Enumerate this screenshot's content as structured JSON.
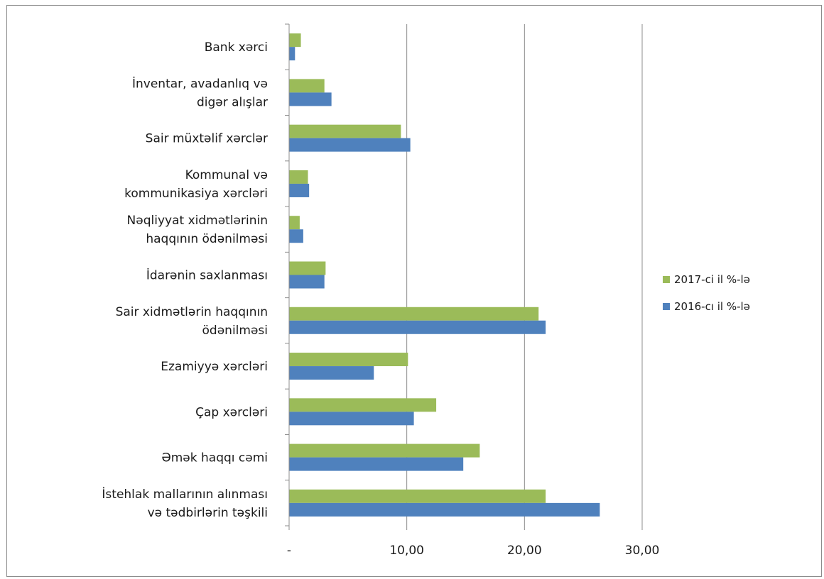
{
  "chart_data": {
    "type": "bar",
    "orientation": "horizontal",
    "categories": [
      [
        "Bank xərci"
      ],
      [
        "İnventar, avadanlıq və",
        "digər alışlar"
      ],
      [
        "Sair müxtəlif xərclər"
      ],
      [
        "Kommunal və",
        "kommunikasiya xərcləri"
      ],
      [
        "Nəqliyyat xidmətlərinin",
        "haqqının ödənilməsi"
      ],
      [
        "İdarənin saxlanması"
      ],
      [
        "Sair xidmətlərin haqqının",
        "ödənilməsi"
      ],
      [
        "Ezamiyyə xərcləri"
      ],
      [
        "Çap xərcləri"
      ],
      [
        "Əmək haqqı cəmi"
      ],
      [
        "İstehlak mallarının alınması",
        "və tədbirlərin təşkili"
      ]
    ],
    "series": [
      {
        "name": "2017-ci il %-lə",
        "color": "#9BBB59",
        "values": [
          1.0,
          3.0,
          9.5,
          1.6,
          0.9,
          3.1,
          21.2,
          10.1,
          12.5,
          16.2,
          21.8
        ]
      },
      {
        "name": "2016-cı il  %-lə",
        "color": "#4F81BD",
        "values": [
          0.5,
          3.6,
          10.3,
          1.7,
          1.2,
          3.0,
          21.8,
          7.2,
          10.6,
          14.8,
          26.4
        ]
      }
    ],
    "xlim": [
      0,
      30
    ],
    "xticks": [
      0,
      10,
      20,
      30
    ],
    "xtick_labels": [
      "-",
      "10,00",
      "20,00",
      "30,00"
    ],
    "grid": "vertical",
    "legend_position": "right"
  }
}
